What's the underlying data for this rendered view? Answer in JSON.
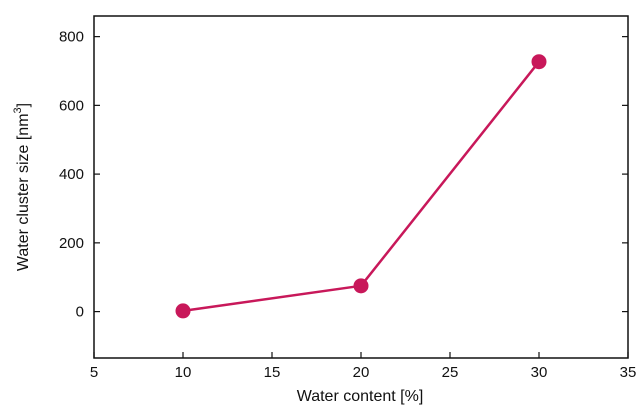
{
  "chart_data": {
    "type": "line",
    "title": "",
    "xlabel": "Water content [%]",
    "ylabel": {
      "prefix": "Water cluster size [nm",
      "superscript": "3",
      "suffix": "]"
    },
    "xlim": [
      5,
      35
    ],
    "ylim": [
      -135,
      860
    ],
    "x_ticks": [
      5,
      10,
      15,
      20,
      25,
      30,
      35
    ],
    "y_ticks": [
      0,
      200,
      400,
      600,
      800
    ],
    "grid": false,
    "series": [
      {
        "color": "#c8185a",
        "x": [
          10,
          20,
          30
        ],
        "y": [
          2,
          75,
          727
        ]
      }
    ]
  }
}
